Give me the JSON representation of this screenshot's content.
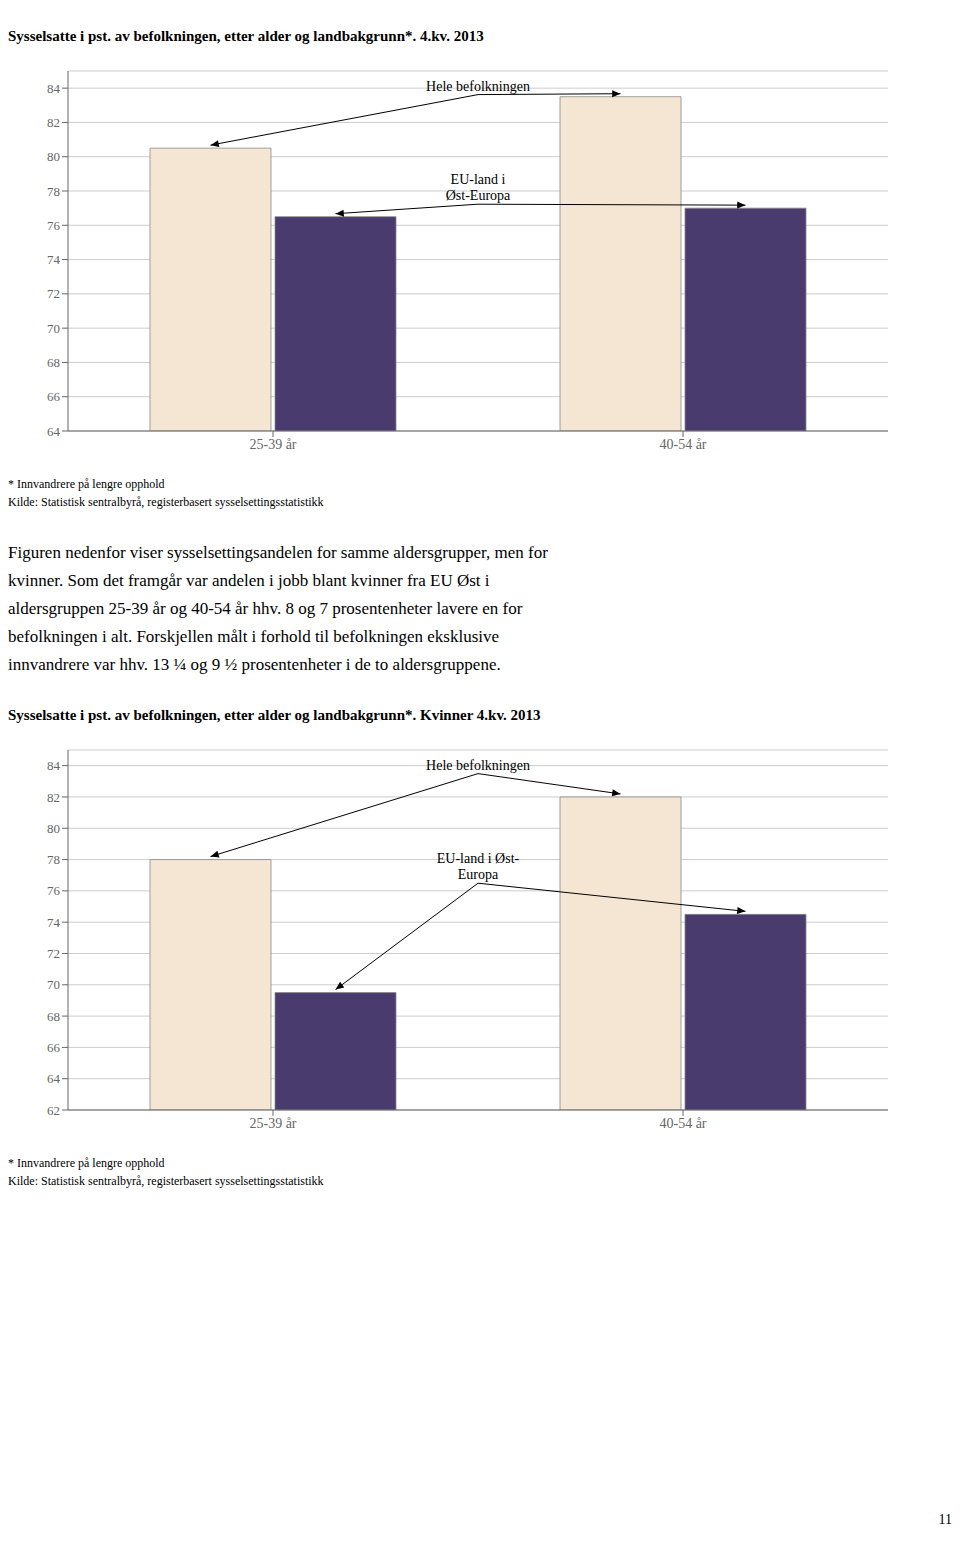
{
  "chart_data": [
    {
      "type": "bar",
      "title": "Sysselsatte i pst. av befolkningen, etter alder og landbakgrunn*. 4.kv. 2013",
      "categories": [
        "25-39 år",
        "40-54 år"
      ],
      "series": [
        {
          "color": "#f5e6d3",
          "values": [
            80.5,
            83.5
          ]
        },
        {
          "color": "#4a3b6e",
          "values": [
            76.5,
            77.0
          ]
        }
      ],
      "ylim": [
        64,
        85
      ],
      "yticks": [
        64,
        66,
        68,
        70,
        72,
        74,
        76,
        78,
        80,
        82,
        84
      ],
      "grid": true,
      "annotations": [
        "Hele befolkningen",
        "EU-land i\nØst-Europa"
      ],
      "footnotes": [
        "* Innvandrere på lengre opphold",
        "Kilde: Statistisk sentralbyrå, registerbasert sysselsettingsstatistikk"
      ]
    },
    {
      "type": "bar",
      "title": "Sysselsatte i pst. av befolkningen, etter alder og landbakgrunn*. Kvinner 4.kv. 2013",
      "categories": [
        "25-39 år",
        "40-54 år"
      ],
      "series": [
        {
          "color": "#f5e6d3",
          "values": [
            78.0,
            82.0
          ]
        },
        {
          "color": "#4a3b6e",
          "values": [
            69.5,
            74.5
          ]
        }
      ],
      "ylim": [
        62,
        85
      ],
      "yticks": [
        62,
        64,
        66,
        68,
        70,
        72,
        74,
        76,
        78,
        80,
        82,
        84
      ],
      "grid": true,
      "annotations": [
        "Hele befolkningen",
        "EU-land i Øst-\nEuropa"
      ],
      "footnotes": [
        "* Innvandrere på lengre opphold",
        "Kilde: Statistisk sentralbyrå, registerbasert sysselsettingsstatistikk"
      ]
    }
  ],
  "text": [
    "Figuren nedenfor viser sysselsettingsandelen for samme aldersgrupper, men for",
    "kvinner. Som det framgår var andelen i jobb blant kvinner fra EU Øst i",
    "aldersgruppen 25-39 år og 40-54 år hhv. 8 og 7 prosentenheter lavere en for",
    "befolkningen i alt. Forskjellen målt i forhold til befolkningen eksklusive",
    "innvandrere var hhv. 13 ¼ og 9 ½ prosentenheter i de to aldersgruppene."
  ],
  "page_number": "11"
}
